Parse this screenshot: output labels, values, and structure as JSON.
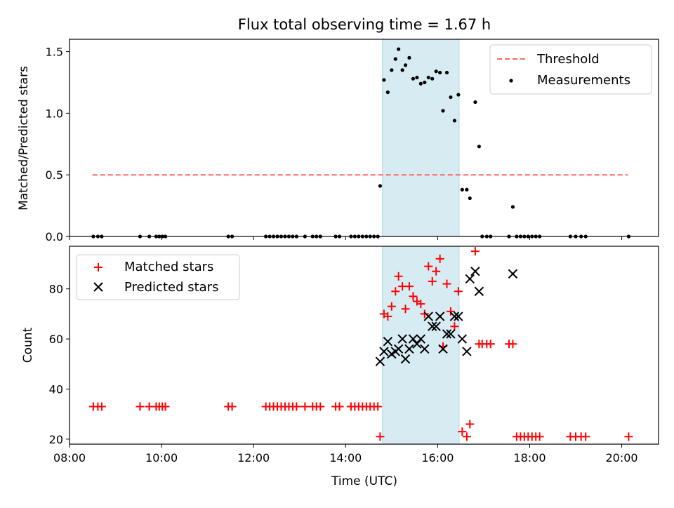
{
  "title": "Flux total observing time = 1.67 h",
  "shade": {
    "start": "14:48",
    "end": "16:28",
    "color": "#add8e6",
    "alpha": 0.5
  },
  "colors": {
    "threshold": "#ff6666",
    "measurement": "#000000",
    "matched": "#ff0000",
    "predicted": "#000000"
  },
  "chart_data": [
    {
      "type": "scatter",
      "ylabel": "Matched/Predicted stars",
      "ylim": [
        0,
        1.6
      ],
      "yticks": [
        {
          "value": 0.0,
          "label": "0.0"
        },
        {
          "value": 0.5,
          "label": "0.5"
        },
        {
          "value": 1.0,
          "label": "1.0"
        },
        {
          "value": 1.5,
          "label": "1.5"
        }
      ],
      "legend_position": "upper right",
      "threshold": {
        "name": "Threshold",
        "value": 0.5,
        "x_range": [
          "08:30",
          "20:08"
        ]
      },
      "series": [
        {
          "name": "Measurements",
          "points": [
            [
              "08:31",
              0
            ],
            [
              "08:37",
              0
            ],
            [
              "08:42",
              0
            ],
            [
              "09:32",
              0
            ],
            [
              "09:44",
              0
            ],
            [
              "09:53",
              0
            ],
            [
              "09:57",
              0
            ],
            [
              "10:01",
              0
            ],
            [
              "10:05",
              0
            ],
            [
              "11:27",
              0
            ],
            [
              "11:32",
              0
            ],
            [
              "12:16",
              0
            ],
            [
              "12:21",
              0
            ],
            [
              "12:26",
              0
            ],
            [
              "12:31",
              0
            ],
            [
              "12:36",
              0
            ],
            [
              "12:41",
              0
            ],
            [
              "12:46",
              0
            ],
            [
              "12:51",
              0
            ],
            [
              "12:56",
              0
            ],
            [
              "13:07",
              0
            ],
            [
              "13:17",
              0
            ],
            [
              "13:22",
              0
            ],
            [
              "13:27",
              0
            ],
            [
              "13:47",
              0
            ],
            [
              "13:52",
              0
            ],
            [
              "14:07",
              0
            ],
            [
              "14:12",
              0
            ],
            [
              "14:17",
              0
            ],
            [
              "14:22",
              0
            ],
            [
              "14:27",
              0
            ],
            [
              "14:32",
              0
            ],
            [
              "14:37",
              0
            ],
            [
              "14:42",
              0
            ],
            [
              "14:45",
              0.41
            ],
            [
              "14:50",
              1.27
            ],
            [
              "14:55",
              1.17
            ],
            [
              "15:00",
              1.35
            ],
            [
              "15:05",
              1.44
            ],
            [
              "15:09",
              1.52
            ],
            [
              "15:14",
              1.35
            ],
            [
              "15:18",
              1.39
            ],
            [
              "15:23",
              1.45
            ],
            [
              "15:28",
              1.28
            ],
            [
              "15:33",
              1.29
            ],
            [
              "15:38",
              1.24
            ],
            [
              "15:43",
              1.25
            ],
            [
              "15:48",
              1.29
            ],
            [
              "15:53",
              1.28
            ],
            [
              "15:58",
              1.34
            ],
            [
              "16:03",
              1.33
            ],
            [
              "16:07",
              1.02
            ],
            [
              "16:12",
              1.33
            ],
            [
              "16:17",
              1.13
            ],
            [
              "16:22",
              0.94
            ],
            [
              "16:27",
              1.15
            ],
            [
              "16:32",
              0.38
            ],
            [
              "16:38",
              0.38
            ],
            [
              "16:42",
              0.31
            ],
            [
              "16:49",
              1.09
            ],
            [
              "16:54",
              0.73
            ],
            [
              "16:58",
              0
            ],
            [
              "17:04",
              0
            ],
            [
              "17:09",
              0
            ],
            [
              "17:38",
              0.24
            ],
            [
              "17:33",
              0
            ],
            [
              "17:43",
              0
            ],
            [
              "17:48",
              0
            ],
            [
              "17:53",
              0
            ],
            [
              "17:58",
              0
            ],
            [
              "18:03",
              0
            ],
            [
              "18:08",
              0
            ],
            [
              "18:13",
              0
            ],
            [
              "18:53",
              0
            ],
            [
              "19:00",
              0
            ],
            [
              "19:07",
              0
            ],
            [
              "19:13",
              0
            ],
            [
              "20:09",
              0
            ]
          ]
        }
      ]
    },
    {
      "type": "scatter",
      "xlabel": "Time (UTC)",
      "ylabel": "Count",
      "xlim": [
        "08:00",
        "20:48"
      ],
      "ylim": [
        18,
        97
      ],
      "xticks": [
        "08:00",
        "10:00",
        "12:00",
        "14:00",
        "16:00",
        "18:00",
        "20:00"
      ],
      "yticks": [
        20,
        40,
        60,
        80
      ],
      "legend_position": "upper left",
      "series": [
        {
          "name": "Matched stars",
          "marker": "+",
          "points": [
            [
              "08:31",
              33
            ],
            [
              "08:37",
              33
            ],
            [
              "08:42",
              33
            ],
            [
              "09:32",
              33
            ],
            [
              "09:44",
              33
            ],
            [
              "09:53",
              33
            ],
            [
              "09:57",
              33
            ],
            [
              "10:01",
              33
            ],
            [
              "10:05",
              33
            ],
            [
              "11:27",
              33
            ],
            [
              "11:32",
              33
            ],
            [
              "12:16",
              33
            ],
            [
              "12:21",
              33
            ],
            [
              "12:26",
              33
            ],
            [
              "12:31",
              33
            ],
            [
              "12:36",
              33
            ],
            [
              "12:41",
              33
            ],
            [
              "12:46",
              33
            ],
            [
              "12:51",
              33
            ],
            [
              "12:56",
              33
            ],
            [
              "13:07",
              33
            ],
            [
              "13:17",
              33
            ],
            [
              "13:22",
              33
            ],
            [
              "13:27",
              33
            ],
            [
              "13:47",
              33
            ],
            [
              "13:52",
              33
            ],
            [
              "14:07",
              33
            ],
            [
              "14:12",
              33
            ],
            [
              "14:17",
              33
            ],
            [
              "14:22",
              33
            ],
            [
              "14:27",
              33
            ],
            [
              "14:32",
              33
            ],
            [
              "14:37",
              33
            ],
            [
              "14:42",
              33
            ],
            [
              "14:45",
              21
            ],
            [
              "14:50",
              70
            ],
            [
              "14:55",
              69
            ],
            [
              "15:00",
              73
            ],
            [
              "15:05",
              79
            ],
            [
              "15:09",
              85
            ],
            [
              "15:14",
              81
            ],
            [
              "15:18",
              72
            ],
            [
              "15:23",
              81
            ],
            [
              "15:28",
              77
            ],
            [
              "15:33",
              75
            ],
            [
              "15:38",
              74
            ],
            [
              "15:43",
              70
            ],
            [
              "15:48",
              89
            ],
            [
              "15:53",
              83
            ],
            [
              "15:58",
              87
            ],
            [
              "16:03",
              92
            ],
            [
              "16:07",
              57
            ],
            [
              "16:12",
              82
            ],
            [
              "16:17",
              71
            ],
            [
              "16:22",
              65
            ],
            [
              "16:27",
              79
            ],
            [
              "16:32",
              23
            ],
            [
              "16:38",
              21
            ],
            [
              "16:42",
              26
            ],
            [
              "16:49",
              95
            ],
            [
              "16:54",
              58
            ],
            [
              "16:58",
              58
            ],
            [
              "17:04",
              58
            ],
            [
              "17:09",
              58
            ],
            [
              "17:33",
              58
            ],
            [
              "17:38",
              58
            ],
            [
              "17:43",
              21
            ],
            [
              "17:48",
              21
            ],
            [
              "17:53",
              21
            ],
            [
              "17:58",
              21
            ],
            [
              "18:03",
              21
            ],
            [
              "18:08",
              21
            ],
            [
              "18:13",
              21
            ],
            [
              "18:53",
              21
            ],
            [
              "19:00",
              21
            ],
            [
              "19:07",
              21
            ],
            [
              "19:13",
              21
            ],
            [
              "20:09",
              21
            ]
          ]
        },
        {
          "name": "Predicted stars",
          "marker": "x",
          "points": [
            [
              "14:45",
              51
            ],
            [
              "14:50",
              55
            ],
            [
              "14:55",
              59
            ],
            [
              "15:00",
              54
            ],
            [
              "15:05",
              55
            ],
            [
              "15:09",
              56
            ],
            [
              "15:14",
              60
            ],
            [
              "15:18",
              52
            ],
            [
              "15:23",
              56
            ],
            [
              "15:28",
              60
            ],
            [
              "15:33",
              58
            ],
            [
              "15:38",
              60
            ],
            [
              "15:43",
              56
            ],
            [
              "15:48",
              69
            ],
            [
              "15:53",
              65
            ],
            [
              "15:58",
              65
            ],
            [
              "16:03",
              69
            ],
            [
              "16:07",
              56
            ],
            [
              "16:12",
              62
            ],
            [
              "16:17",
              62
            ],
            [
              "16:22",
              69
            ],
            [
              "16:27",
              69
            ],
            [
              "16:32",
              60
            ],
            [
              "16:38",
              55
            ],
            [
              "16:42",
              84
            ],
            [
              "16:49",
              87
            ],
            [
              "16:54",
              79
            ],
            [
              "17:38",
              86
            ]
          ]
        }
      ]
    }
  ]
}
